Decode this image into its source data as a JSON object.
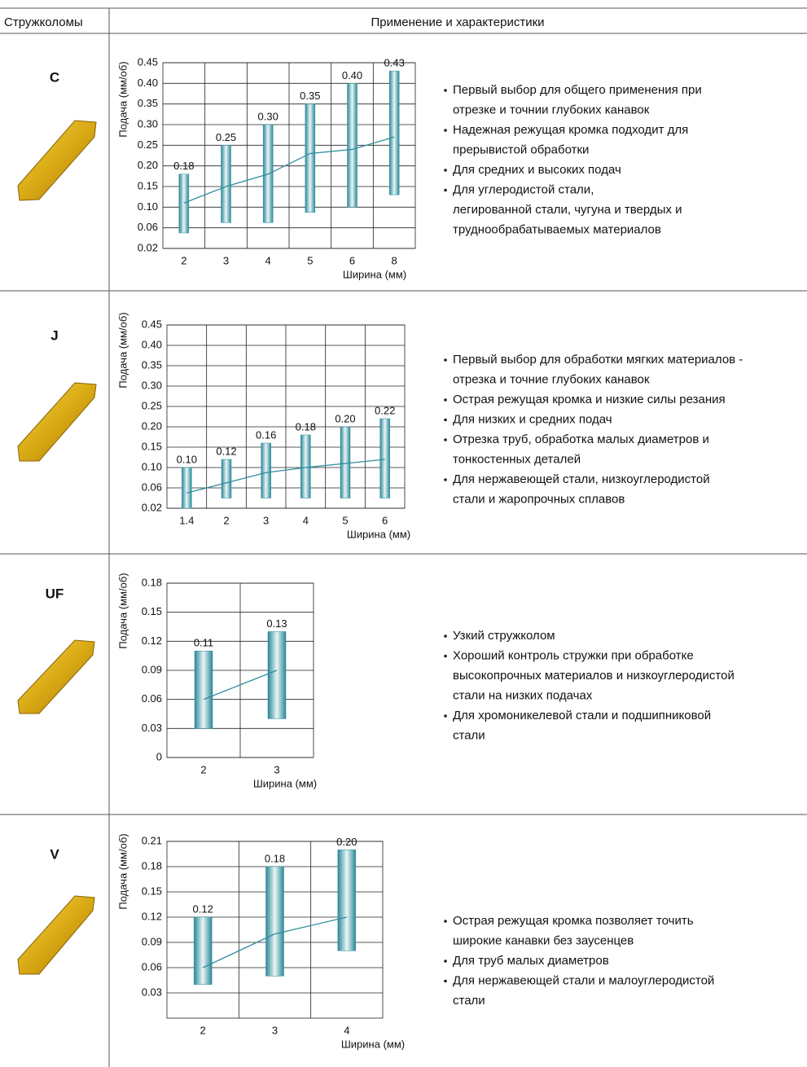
{
  "header": {
    "col1": "Стружколомы",
    "col2": "Применение и характеристики"
  },
  "rows": [
    {
      "name": "C",
      "bullets": [
        [
          "Первый выбор для общего применения при",
          "отрезке и точнии глубоких канавок"
        ],
        [
          "Надежная режущая кромка подходит для",
          "прерывистой обработки"
        ],
        [
          "Для средних и высоких подач"
        ],
        [
          "Для углеродистой стали,",
          "легированной стали, чугуна и твердых и",
          "труднообрабатываемых материалов"
        ]
      ]
    },
    {
      "name": "J",
      "bullets": [
        [
          "Первый выбор для обработки мягких материалов -",
          "отрезка и точние глубоких канавок"
        ],
        [
          "Острая режущая кромка и низкие силы резания"
        ],
        [
          "Для низких и средних подач"
        ],
        [
          "Отрезка труб,  обработка малых диаметров и",
          "тонкостенных  деталей"
        ],
        [
          "Для нержавеющей стали, низкоуглеродистой",
          "стали и жаропрочных сплавов"
        ]
      ]
    },
    {
      "name": "UF",
      "bullets": [
        [
          "Узкий стружколом"
        ],
        [
          "Хороший контроль стружки при обработке",
          "высокопрочных материалов и низкоуглеродистой",
          "стали на низких подачах"
        ],
        [
          "Для хромоникелевой стали и подшипниковой",
          "стали"
        ]
      ]
    },
    {
      "name": "V",
      "bullets": [
        [
          "Острая режущая кромка позволяет точить",
          "широкие канавки без заусенцев"
        ],
        [
          "Для труб малых диаметров"
        ],
        [
          "Для нержавеющей стали и малоуглеродистой",
          "стали"
        ]
      ]
    }
  ],
  "chart_data": [
    {
      "type": "range-bar",
      "y_label": "Подача (мм/об)",
      "x_label": "Ширина (мм)",
      "y_scale": "tick-spaced",
      "categories": [
        "2",
        "3",
        "4",
        "5",
        "6",
        "8"
      ],
      "low": [
        0.05,
        0.07,
        0.07,
        0.09,
        0.1,
        0.13
      ],
      "high": [
        0.18,
        0.25,
        0.3,
        0.35,
        0.4,
        0.43
      ],
      "value_labels": [
        "0.18",
        "0.25",
        "0.30",
        "0.35",
        "0.40",
        "0.43"
      ],
      "line": [
        0.11,
        0.15,
        0.18,
        0.23,
        0.24,
        0.27
      ],
      "ylim": [
        0.02,
        0.45
      ],
      "yticks": [
        0.02,
        0.06,
        {
          "value": 0.1,
          "label": "0.10"
        },
        0.15,
        {
          "value": 0.2,
          "label": "0.20"
        },
        0.25,
        {
          "value": 0.3,
          "label": "0.30"
        },
        0.35,
        {
          "value": 0.4,
          "label": "0.40"
        },
        0.45
      ],
      "color": "#2f8e9e",
      "grid": true
    },
    {
      "type": "range-bar",
      "y_label": "Подача (мм/об)",
      "x_label": "Ширина (мм)",
      "y_scale": "tick-spaced",
      "categories": [
        "1.4",
        "2",
        "3",
        "4",
        "5",
        "6"
      ],
      "low": [
        0.02,
        0.04,
        0.04,
        0.04,
        0.04,
        0.04
      ],
      "high": [
        0.1,
        0.12,
        0.16,
        0.18,
        0.2,
        0.22
      ],
      "value_labels": [
        "0.10",
        "0.12",
        "0.16",
        "0.18",
        "0.20",
        "0.22"
      ],
      "line": [
        0.05,
        0.07,
        0.09,
        0.1,
        0.11,
        0.12
      ],
      "ylim": [
        0.02,
        0.45
      ],
      "yticks": [
        0.02,
        0.06,
        {
          "value": 0.1,
          "label": "0.10"
        },
        0.15,
        {
          "value": 0.2,
          "label": "0.20"
        },
        0.25,
        {
          "value": 0.3,
          "label": "0.30"
        },
        0.35,
        {
          "value": 0.4,
          "label": "0.40"
        },
        0.45
      ],
      "color": "#2f8e9e",
      "grid": true
    },
    {
      "type": "range-bar",
      "y_label": "Подача (мм/об)",
      "x_label": "Ширина (мм)",
      "y_scale": "linear",
      "categories": [
        "2",
        "3"
      ],
      "low": [
        0.03,
        0.04
      ],
      "high": [
        0.11,
        0.13
      ],
      "value_labels": [
        "0.11",
        "0.13"
      ],
      "line": [
        0.06,
        0.09
      ],
      "ylim": [
        0,
        0.18
      ],
      "yticks": [
        0,
        0.03,
        0.06,
        0.09,
        0.12,
        0.15,
        0.18
      ],
      "color": "#2f8e9e",
      "grid": true
    },
    {
      "type": "range-bar",
      "y_label": "Подача (мм/об)",
      "x_label": "Ширина (мм)",
      "y_scale": "linear",
      "categories": [
        "2",
        "3",
        "4"
      ],
      "low": [
        0.04,
        0.05,
        0.08
      ],
      "high": [
        0.12,
        0.18,
        0.2
      ],
      "value_labels": [
        "0.12",
        "0.18",
        "0.20"
      ],
      "line": [
        0.06,
        0.1,
        0.12
      ],
      "ylim": [
        0,
        0.21
      ],
      "yticks": [
        0.03,
        0.06,
        0.09,
        0.12,
        0.15,
        0.18,
        0.21
      ],
      "color": "#2f8e9e",
      "grid": true
    }
  ]
}
